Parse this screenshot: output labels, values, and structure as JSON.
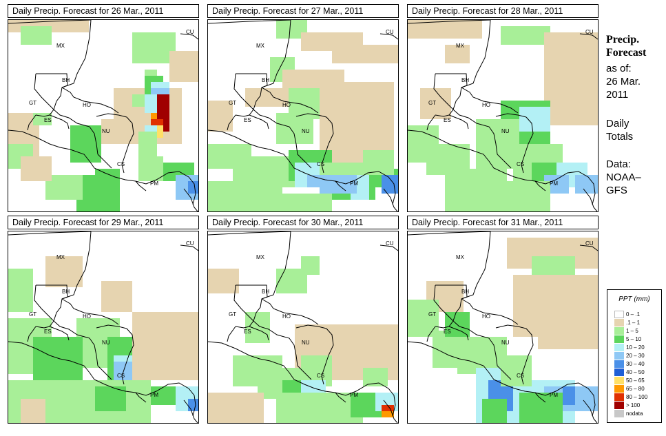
{
  "panels": [
    {
      "title": "Daily Precip. Forecast for  26 Mar., 2011"
    },
    {
      "title": "Daily Precip. Forecast for  27 Mar., 2011"
    },
    {
      "title": "Daily Precip. Forecast for  28 Mar., 2011"
    },
    {
      "title": "Daily Precip. Forecast for  29 Mar., 2011"
    },
    {
      "title": "Daily Precip. Forecast for  30 Mar., 2011"
    },
    {
      "title": "Daily Precip. Forecast for  31 Mar., 2011"
    }
  ],
  "country_labels": [
    "MX",
    "CU",
    "BH",
    "GT",
    "HO",
    "ES",
    "NU",
    "CS",
    "PM"
  ],
  "side": {
    "title_line1": "Precip.",
    "title_line2": "Forecast",
    "asof_line1": "as of:",
    "asof_line2": "26 Mar.",
    "asof_line3": "2011",
    "totals_line1": "Daily",
    "totals_line2": "Totals",
    "data_line1": "Data:",
    "data_line2": "NOAA–",
    "data_line3": "GFS"
  },
  "legend": {
    "title": "PPT (mm)",
    "items": [
      {
        "label": "0 – .1",
        "color": "#ffffff"
      },
      {
        "label": ".1 – 1",
        "color": "#e6d4b0"
      },
      {
        "label": "1 – 5",
        "color": "#a8ef98"
      },
      {
        "label": "5 – 10",
        "color": "#5cd65c"
      },
      {
        "label": "10 – 20",
        "color": "#b3f0f5"
      },
      {
        "label": "20 – 30",
        "color": "#8ec8f5"
      },
      {
        "label": "30 – 40",
        "color": "#4a90e8"
      },
      {
        "label": "40 – 50",
        "color": "#1f5fd6"
      },
      {
        "label": "50 – 65",
        "color": "#ffe066"
      },
      {
        "label": "65 – 80",
        "color": "#ff9900"
      },
      {
        "label": "80 – 100",
        "color": "#e03000"
      },
      {
        "label": "> 100",
        "color": "#a00000"
      },
      {
        "label": "nodata",
        "color": "#c8c8c8"
      }
    ]
  }
}
